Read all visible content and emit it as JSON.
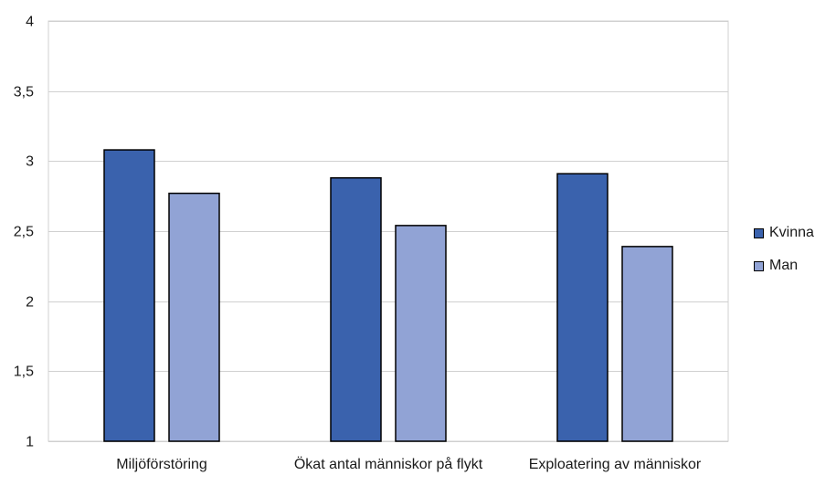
{
  "chart_data": {
    "type": "bar",
    "categories": [
      "Miljöförstöring",
      "Ökat antal människor på flykt",
      "Exploatering av människor"
    ],
    "series": [
      {
        "name": "Kvinna",
        "values": [
          3.08,
          2.88,
          2.91
        ],
        "color": "#3a62ad"
      },
      {
        "name": "Man",
        "values": [
          2.77,
          2.54,
          2.39
        ],
        "color": "#91a3d5"
      }
    ],
    "ylim": [
      1,
      4
    ],
    "yticks": [
      1,
      1.5,
      2,
      2.5,
      3,
      3.5,
      4
    ],
    "ytick_labels": [
      "1",
      "1,5",
      "2",
      "2,5",
      "3",
      "3,5",
      "4"
    ],
    "grid": true,
    "legend": "right",
    "title": "",
    "xlabel": "",
    "ylabel": ""
  }
}
